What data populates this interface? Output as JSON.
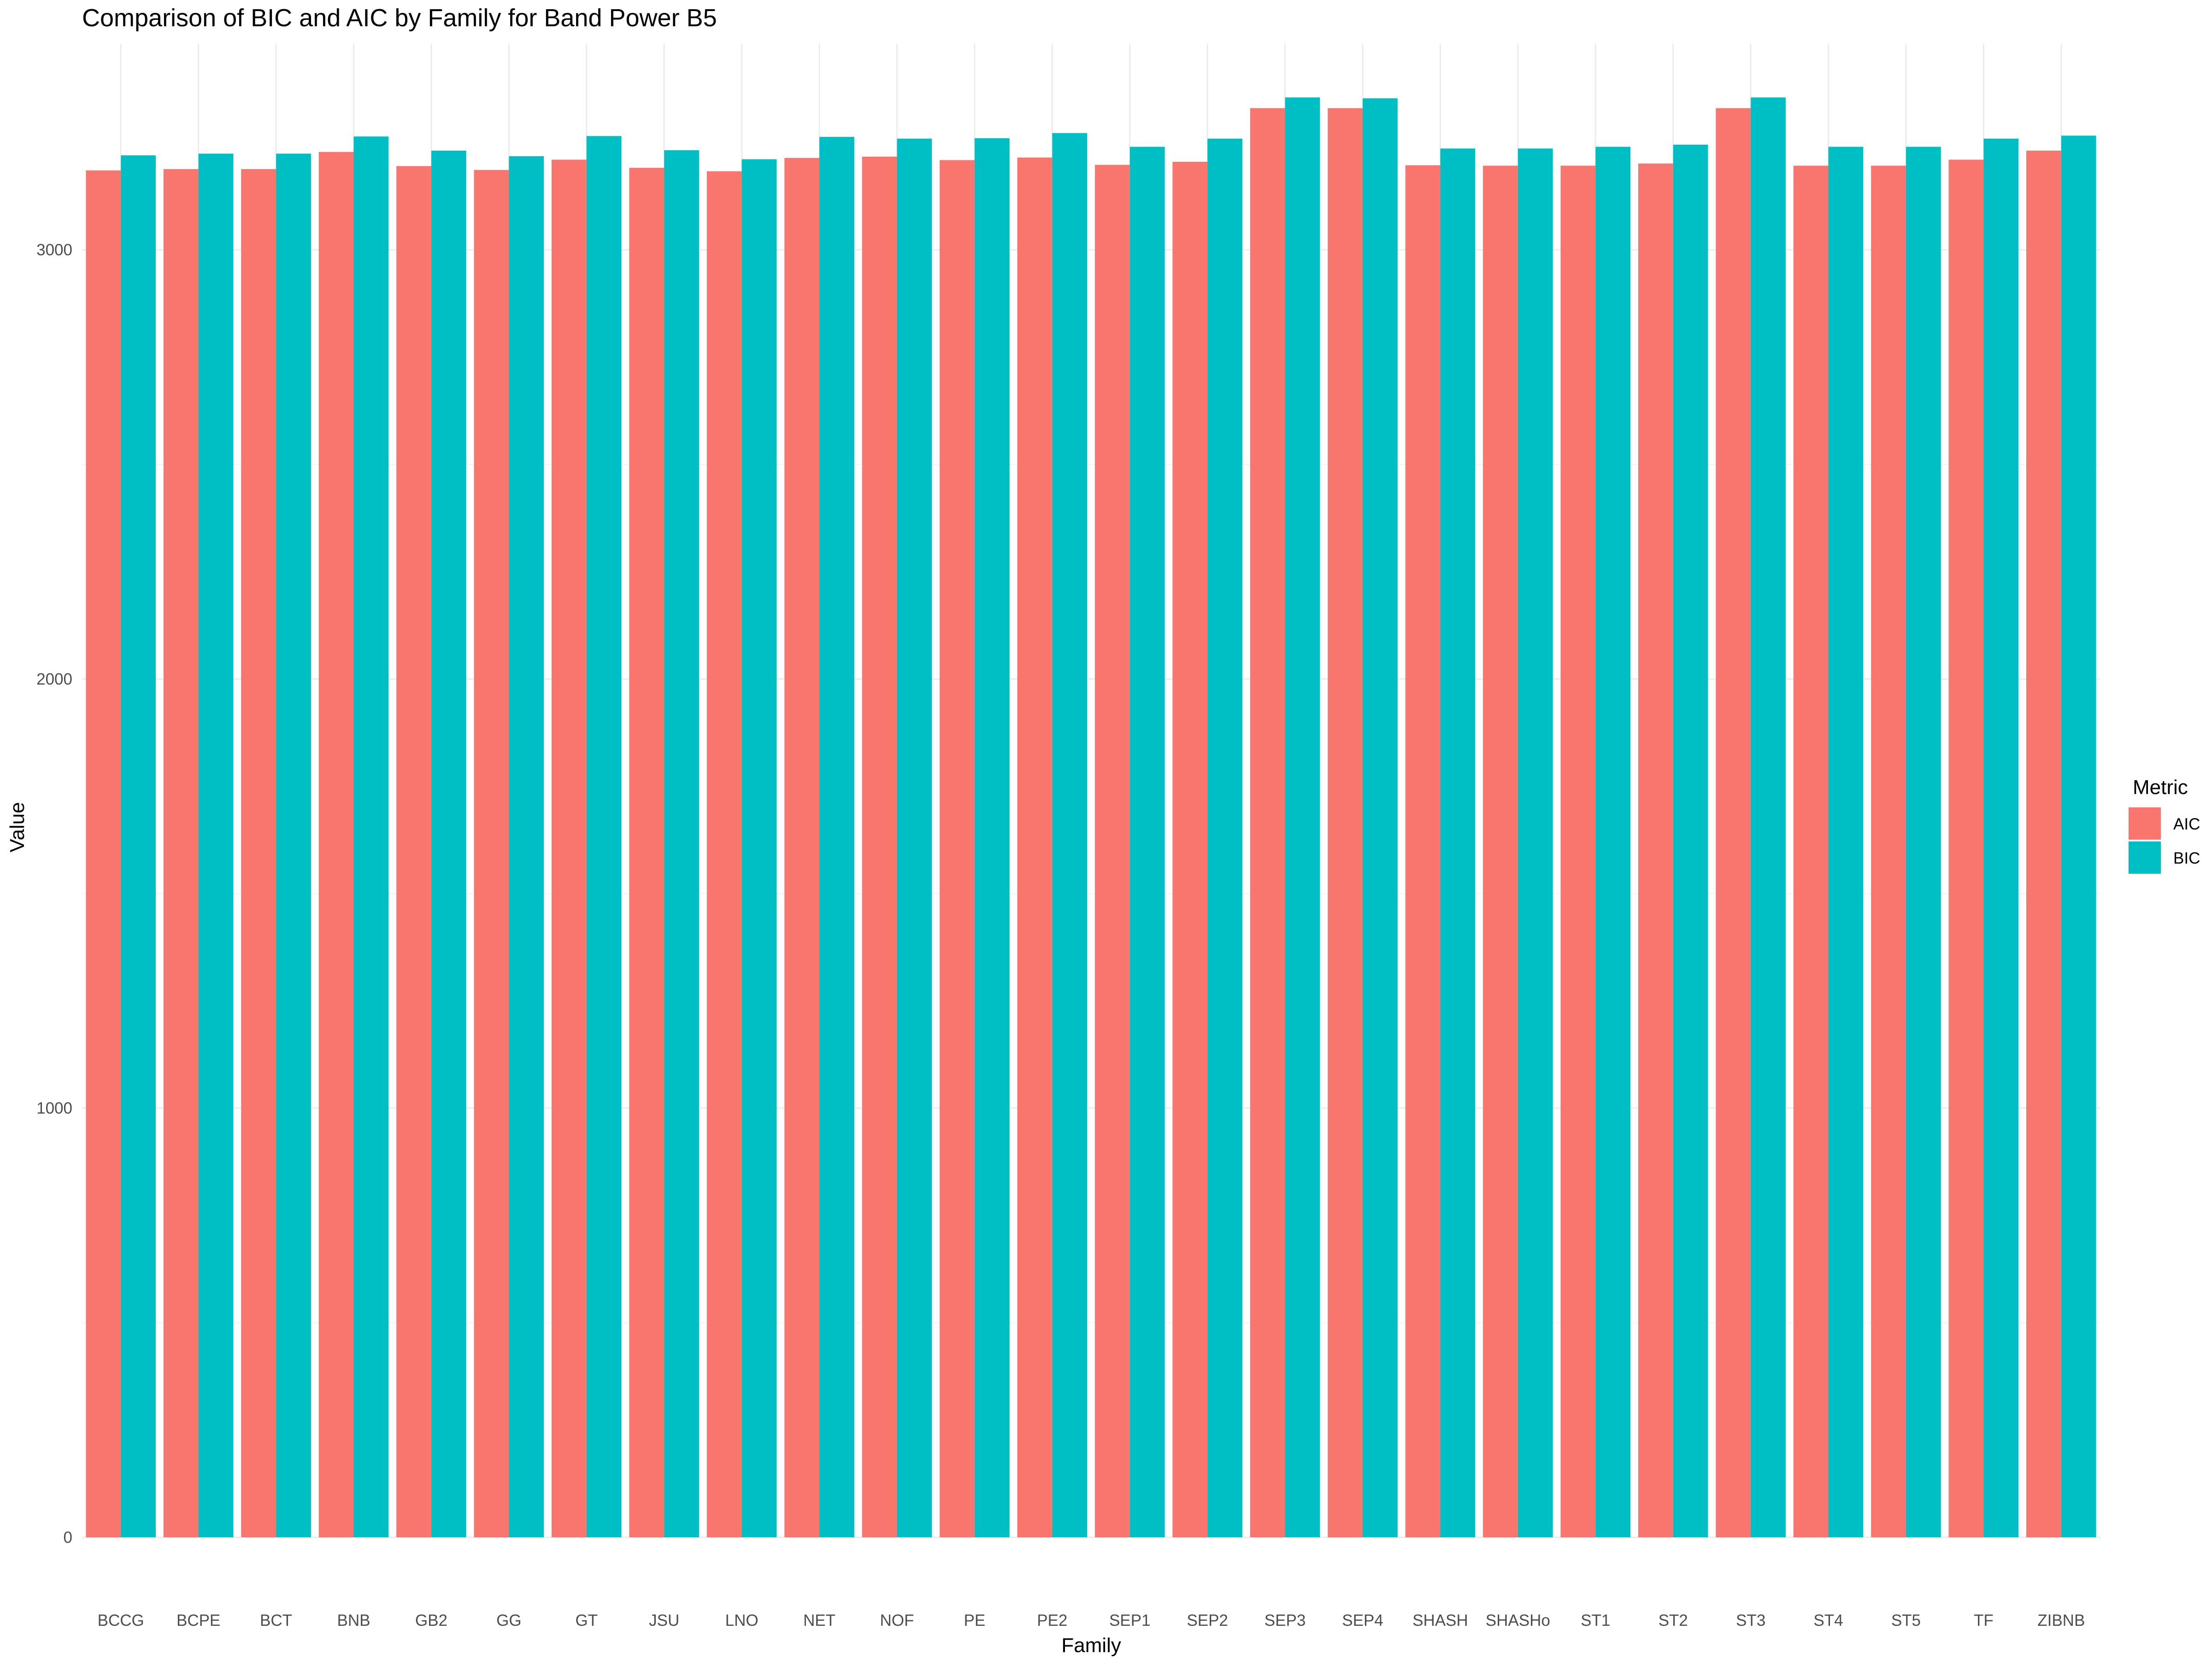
{
  "chart_data": {
    "type": "bar",
    "title": "Comparison of BIC and AIC by Family for Band Power B5",
    "xlabel": "Family",
    "ylabel": "Value",
    "ylim": [
      0,
      3480
    ],
    "yticks": [
      0,
      1000,
      2000,
      3000
    ],
    "grid": true,
    "legend": {
      "title": "Metric",
      "position": "right"
    },
    "categories": [
      "BCCG",
      "BCPE",
      "BCT",
      "BNB",
      "GB2",
      "GG",
      "GT",
      "JSU",
      "LNO",
      "NET",
      "NOF",
      "PE",
      "PE2",
      "SEP1",
      "SEP2",
      "SEP3",
      "SEP4",
      "SHASH",
      "SHASHo",
      "ST1",
      "ST2",
      "ST3",
      "ST4",
      "ST5",
      "TF",
      "ZIBNB"
    ],
    "series": [
      {
        "name": "AIC",
        "color": "#F8766D",
        "values": [
          3185,
          3188,
          3188,
          3228,
          3195,
          3186,
          3210,
          3191,
          3183,
          3214,
          3217,
          3209,
          3215,
          3198,
          3205,
          3330,
          3330,
          3197,
          3196,
          3196,
          3201,
          3330,
          3196,
          3196,
          3210,
          3231
        ]
      },
      {
        "name": "BIC",
        "color": "#00BFC4",
        "values": [
          3220,
          3224,
          3224,
          3264,
          3231,
          3218,
          3265,
          3232,
          3211,
          3263,
          3259,
          3260,
          3272,
          3240,
          3259,
          3355,
          3353,
          3236,
          3236,
          3240,
          3245,
          3355,
          3240,
          3240,
          3259,
          3266
        ]
      }
    ]
  }
}
